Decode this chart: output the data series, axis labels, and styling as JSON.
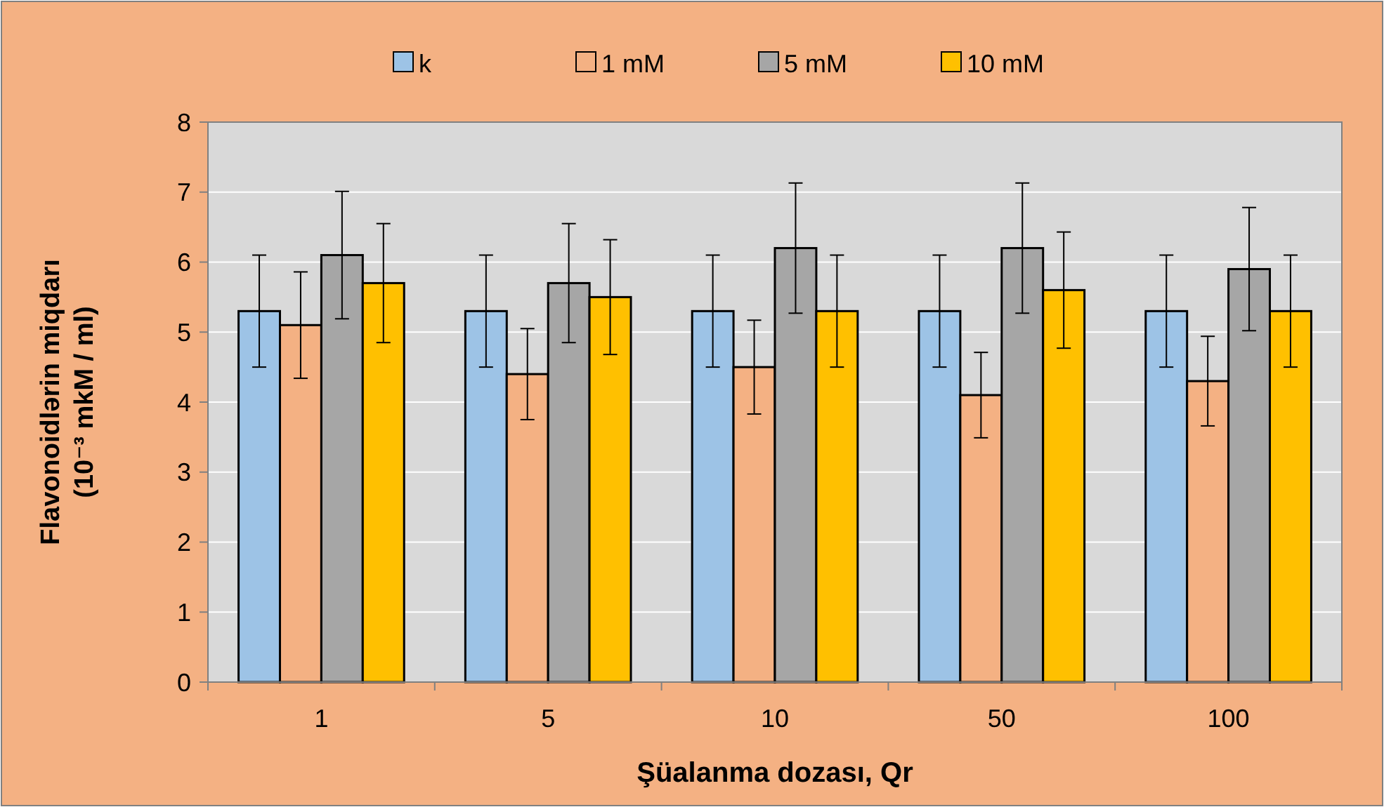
{
  "chart_data": {
    "type": "bar",
    "xlabel": "Şüalanma dozası, Qr",
    "ylabel": "Flavonoidlərin miqdarı\n(10⁻³ mkM / ml)",
    "categories": [
      "1",
      "5",
      "10",
      "50",
      "100"
    ],
    "series": [
      {
        "name": "k",
        "color": "#9dc3e6",
        "values": [
          5.3,
          5.3,
          5.3,
          5.3,
          5.3
        ],
        "errors": [
          0.8,
          0.8,
          0.8,
          0.8,
          0.8
        ]
      },
      {
        "name": "1 mM",
        "color": "#f4b183",
        "values": [
          5.1,
          4.4,
          4.5,
          4.1,
          4.3
        ],
        "errors": [
          0.76,
          0.65,
          0.67,
          0.61,
          0.64
        ]
      },
      {
        "name": "5 mM",
        "color": "#a6a6a6",
        "values": [
          6.1,
          5.7,
          6.2,
          6.2,
          5.9
        ],
        "errors": [
          0.91,
          0.85,
          0.93,
          0.93,
          0.88
        ]
      },
      {
        "name": "10 mM",
        "color": "#ffc000",
        "values": [
          5.7,
          5.5,
          5.3,
          5.6,
          5.3
        ],
        "errors": [
          0.85,
          0.82,
          0.8,
          0.83,
          0.8
        ]
      }
    ],
    "ylim": [
      0,
      8
    ],
    "yticks": [
      0,
      1,
      2,
      3,
      4,
      5,
      6,
      7,
      8
    ],
    "grid": "y",
    "legend": "top"
  }
}
